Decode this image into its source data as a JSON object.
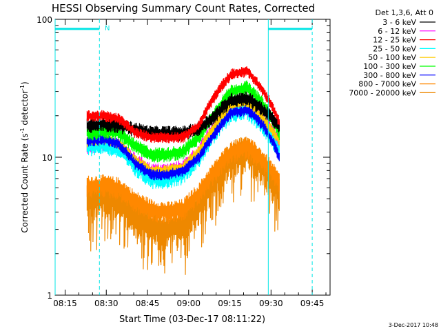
{
  "chart_data": {
    "type": "line",
    "title": "HESSI Observing Summary Count Rates, Corrected",
    "xlabel": "Start Time (03-Dec-17 08:11:22)",
    "ylabel": "Corrected Count Rate (s⁻¹ detector⁻¹)",
    "ylabel_main": "Corrected Count Rate (s",
    "ylabel_sup1": "-1",
    "ylabel_mid": " detector",
    "ylabel_sup2": "-1",
    "ylabel_end": ")",
    "yscale": "log",
    "ylim": [
      1,
      100
    ],
    "xlim_minutes": [
      "08:11:22",
      "09:51:30"
    ],
    "x_ticks": [
      "08:15",
      "08:30",
      "08:45",
      "09:00",
      "09:15",
      "09:30",
      "09:45"
    ],
    "y_ticks": [
      "1",
      "10",
      "100"
    ],
    "legend_title": "Det 1,3,6, Att 0",
    "legend_position": "right",
    "footer_date": "3-Dec-2017 10:48",
    "annotations": {
      "night_flag": "N",
      "night_intervals": [
        [
          "08:11:22",
          "08:27:30"
        ],
        [
          "09:29:00",
          "09:45:00"
        ]
      ],
      "boundary_lines": [
        "08:11:22",
        "08:27:30",
        "09:29:00",
        "09:45:00"
      ]
    },
    "data_start": "08:23:00",
    "data_end": "09:33:00",
    "series": [
      {
        "name": "3 - 6 keV",
        "color": "#000000",
        "values": [
          17,
          17.5,
          17,
          16,
          15,
          15,
          15,
          16,
          20,
          26,
          27,
          22,
          17
        ],
        "noise": 0.08
      },
      {
        "name": "6 - 12 keV",
        "color": "#ff00ff",
        "values": [
          12,
          12.5,
          12,
          9.5,
          8,
          8,
          8.5,
          11,
          17,
          24,
          25,
          19,
          13
        ],
        "noise": 0.08
      },
      {
        "name": "12 - 25 keV",
        "color": "#ff0000",
        "values": [
          20,
          20,
          19,
          15,
          14,
          14,
          14,
          17,
          28,
          40,
          42,
          30,
          18
        ],
        "noise": 0.06
      },
      {
        "name": "25 - 50 keV",
        "color": "#00ffff",
        "values": [
          12,
          12.5,
          11.5,
          8.5,
          7,
          7,
          7.5,
          10,
          15,
          21,
          22,
          17,
          11
        ],
        "noise": 0.1
      },
      {
        "name": "50 - 100 keV",
        "color": "#ffcc00",
        "values": [
          13,
          13.5,
          12.5,
          9.5,
          8,
          8,
          8.5,
          11,
          17,
          24,
          25,
          19,
          13
        ],
        "noise": 0.06
      },
      {
        "name": "100 - 300 keV",
        "color": "#00ff00",
        "values": [
          15,
          15.5,
          15,
          12,
          10.5,
          10.5,
          11,
          14,
          21,
          30,
          32,
          24,
          15
        ],
        "noise": 0.08
      },
      {
        "name": "300 - 800 keV",
        "color": "#0000ff",
        "values": [
          13,
          13.5,
          12.5,
          9,
          7.5,
          7.5,
          8,
          10,
          15,
          21,
          22,
          17,
          10
        ],
        "noise": 0.06
      },
      {
        "name": "800 - 7000 keV",
        "color": "#ff8800",
        "values": [
          6.2,
          6.3,
          6,
          4.8,
          4.2,
          4,
          4.2,
          5.5,
          8,
          11,
          12,
          9.5,
          6.5
        ],
        "noise": 0.12
      },
      {
        "name": "7000 - 20000 keV",
        "color": "#ee8800",
        "values": [
          5,
          5.2,
          4.8,
          3.8,
          3.2,
          3,
          3.3,
          4.5,
          7,
          10,
          11,
          8.5,
          5.5
        ],
        "noise": 0.2
      }
    ]
  }
}
